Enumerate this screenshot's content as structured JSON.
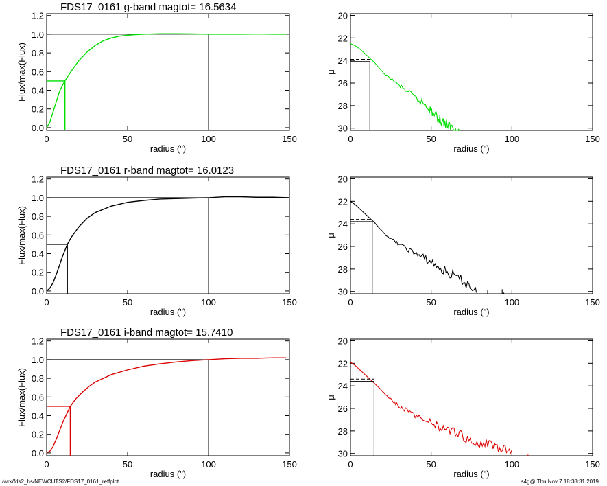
{
  "footer": {
    "path": "/wrk/fds2_hs/NEWCUTS2/FDS17_0161_reffplot",
    "stamp": "s4g@  Thu Nov  7 18:38:31 2019"
  },
  "chart_data": [
    {
      "type": "line",
      "panel": "growth-curve",
      "band": "g",
      "title": "FDS17_0161 g-band  magtot=      16.5634",
      "xlabel": "radius (\")",
      "ylabel": "Flux/max(Flux)",
      "xlim": [
        0,
        150
      ],
      "ylim": [
        -0.03,
        1.22
      ],
      "xticks": [
        0,
        50,
        100,
        150
      ],
      "yticks": [
        0.0,
        0.2,
        0.4,
        0.6,
        0.8,
        1.0,
        1.2
      ],
      "color": "#00dd00",
      "curve": {
        "x": [
          0,
          2,
          4,
          6,
          8,
          10,
          11.3,
          15,
          20,
          25,
          30,
          35,
          40,
          45,
          50,
          55,
          60,
          70,
          80,
          90,
          100,
          110,
          120,
          130,
          140,
          148
        ],
        "y": [
          0,
          0.06,
          0.17,
          0.28,
          0.39,
          0.46,
          0.5,
          0.6,
          0.72,
          0.81,
          0.88,
          0.93,
          0.96,
          0.98,
          0.99,
          0.995,
          1.0,
          1.005,
          1.005,
          1.003,
          1.0,
          1.0,
          1.0,
          1.002,
          1.0,
          1.0
        ]
      },
      "half_light_radius": 11.3,
      "half_level": 0.5,
      "total_radius": 100,
      "total_level": 1.0
    },
    {
      "type": "line",
      "panel": "surface-brightness",
      "band": "g",
      "xlabel": "radius (\")",
      "ylabel": "μ",
      "xlim": [
        0,
        150
      ],
      "ylim": [
        30.2,
        19.85
      ],
      "xticks": [
        0,
        50,
        100,
        150
      ],
      "yticks": [
        20,
        22,
        24,
        26,
        28,
        30
      ],
      "color": "#00dd00",
      "profile": {
        "x": [
          0,
          3,
          6,
          9,
          12,
          15,
          18,
          21,
          25,
          30,
          35,
          40,
          45,
          48,
          50,
          52,
          55,
          57,
          60,
          62,
          65,
          68
        ],
        "y": [
          22.5,
          22.7,
          23.0,
          23.4,
          23.8,
          24.2,
          24.7,
          25.2,
          25.6,
          26.2,
          26.7,
          27.3,
          27.8,
          28.1,
          28.5,
          28.8,
          29.2,
          29.4,
          29.7,
          29.9,
          30.1,
          30.3
        ]
      },
      "mu_eff": 24.1,
      "mu_eff_mean": 23.9,
      "r_eff": 12.0
    },
    {
      "type": "line",
      "panel": "growth-curve",
      "band": "r",
      "title": "FDS17_0161 r-band  magtot=      16.0123",
      "xlabel": "radius (\")",
      "ylabel": "Flux/max(Flux)",
      "xlim": [
        0,
        150
      ],
      "ylim": [
        -0.03,
        1.22
      ],
      "xticks": [
        0,
        50,
        100,
        150
      ],
      "yticks": [
        0.0,
        0.2,
        0.4,
        0.6,
        0.8,
        1.0,
        1.2
      ],
      "color": "#000000",
      "curve": {
        "x": [
          0,
          2,
          4,
          6,
          8,
          10,
          12.8,
          15,
          20,
          25,
          30,
          40,
          50,
          60,
          70,
          80,
          90,
          100,
          110,
          120,
          130,
          140,
          150
        ],
        "y": [
          0,
          0.03,
          0.09,
          0.18,
          0.28,
          0.38,
          0.5,
          0.57,
          0.69,
          0.78,
          0.84,
          0.91,
          0.95,
          0.97,
          0.985,
          0.99,
          0.995,
          1.0,
          1.01,
          1.01,
          1.005,
          1.005,
          1.0
        ]
      },
      "half_light_radius": 12.8,
      "half_level": 0.5,
      "total_radius": 100,
      "total_level": 1.0
    },
    {
      "type": "line",
      "panel": "surface-brightness",
      "band": "r",
      "xlabel": "radius (\")",
      "ylabel": "μ",
      "xlim": [
        0,
        150
      ],
      "ylim": [
        30.2,
        19.85
      ],
      "xticks": [
        0,
        50,
        100,
        150
      ],
      "yticks": [
        20,
        22,
        24,
        26,
        28,
        30
      ],
      "color": "#000000",
      "profile": {
        "x": [
          0,
          3,
          6,
          9,
          12,
          15,
          18,
          22,
          26,
          30,
          35,
          40,
          45,
          50,
          55,
          60,
          65,
          70,
          75,
          78
        ],
        "y": [
          22.0,
          22.3,
          22.7,
          23.1,
          23.5,
          23.9,
          24.4,
          25.0,
          25.4,
          25.8,
          26.2,
          26.6,
          27.0,
          27.4,
          27.9,
          28.3,
          28.7,
          29.1,
          29.6,
          30.1
        ]
      },
      "outliers_x": [
        85,
        94,
        95
      ],
      "outliers_y": [
        29.9,
        29.8,
        30.1
      ],
      "mu_eff": 23.8,
      "mu_eff_mean": 23.6,
      "r_eff": 13.5
    },
    {
      "type": "line",
      "panel": "growth-curve",
      "band": "i",
      "title": "FDS17_0161 i-band  magtot=      15.7410",
      "xlabel": "radius (\")",
      "ylabel": "Flux/max(Flux)",
      "xlim": [
        0,
        150
      ],
      "ylim": [
        -0.03,
        1.22
      ],
      "xticks": [
        0,
        50,
        100,
        150
      ],
      "yticks": [
        0.0,
        0.2,
        0.4,
        0.6,
        0.8,
        1.0,
        1.2
      ],
      "color": "#dd0000",
      "curve": {
        "x": [
          0,
          2,
          4,
          6,
          8,
          10,
          14.6,
          18,
          22,
          26,
          30,
          40,
          50,
          60,
          70,
          80,
          90,
          100,
          110,
          120,
          130,
          140,
          148
        ],
        "y": [
          0,
          0.02,
          0.07,
          0.15,
          0.24,
          0.33,
          0.5,
          0.58,
          0.65,
          0.71,
          0.76,
          0.84,
          0.89,
          0.93,
          0.955,
          0.975,
          0.99,
          1.0,
          1.01,
          1.015,
          1.015,
          1.02,
          1.02
        ]
      },
      "half_light_radius": 14.6,
      "half_level": 0.5,
      "total_radius": 100,
      "total_level": 1.0
    },
    {
      "type": "line",
      "panel": "surface-brightness",
      "band": "i",
      "xlabel": "radius (\")",
      "ylabel": "μ",
      "xlim": [
        0,
        150
      ],
      "ylim": [
        30.2,
        19.85
      ],
      "xticks": [
        0,
        50,
        100,
        150
      ],
      "yticks": [
        20,
        22,
        24,
        26,
        28,
        30
      ],
      "color": "#dd0000",
      "profile": {
        "x": [
          0,
          3,
          6,
          9,
          12,
          15,
          18,
          22,
          26,
          30,
          35,
          40,
          45,
          50,
          55,
          60,
          65,
          70,
          75,
          80,
          85,
          90,
          95,
          100
        ],
        "y": [
          21.9,
          22.2,
          22.6,
          23.0,
          23.4,
          23.8,
          24.2,
          24.8,
          25.3,
          25.8,
          26.2,
          26.6,
          27.0,
          27.3,
          27.6,
          27.9,
          28.2,
          28.5,
          28.8,
          29.0,
          29.2,
          29.4,
          29.6,
          29.7
        ]
      },
      "outliers_x": [
        110
      ],
      "outliers_y": [
        30.1
      ],
      "mu_eff": 23.6,
      "mu_eff_mean": 23.4,
      "r_eff": 14.6
    }
  ]
}
